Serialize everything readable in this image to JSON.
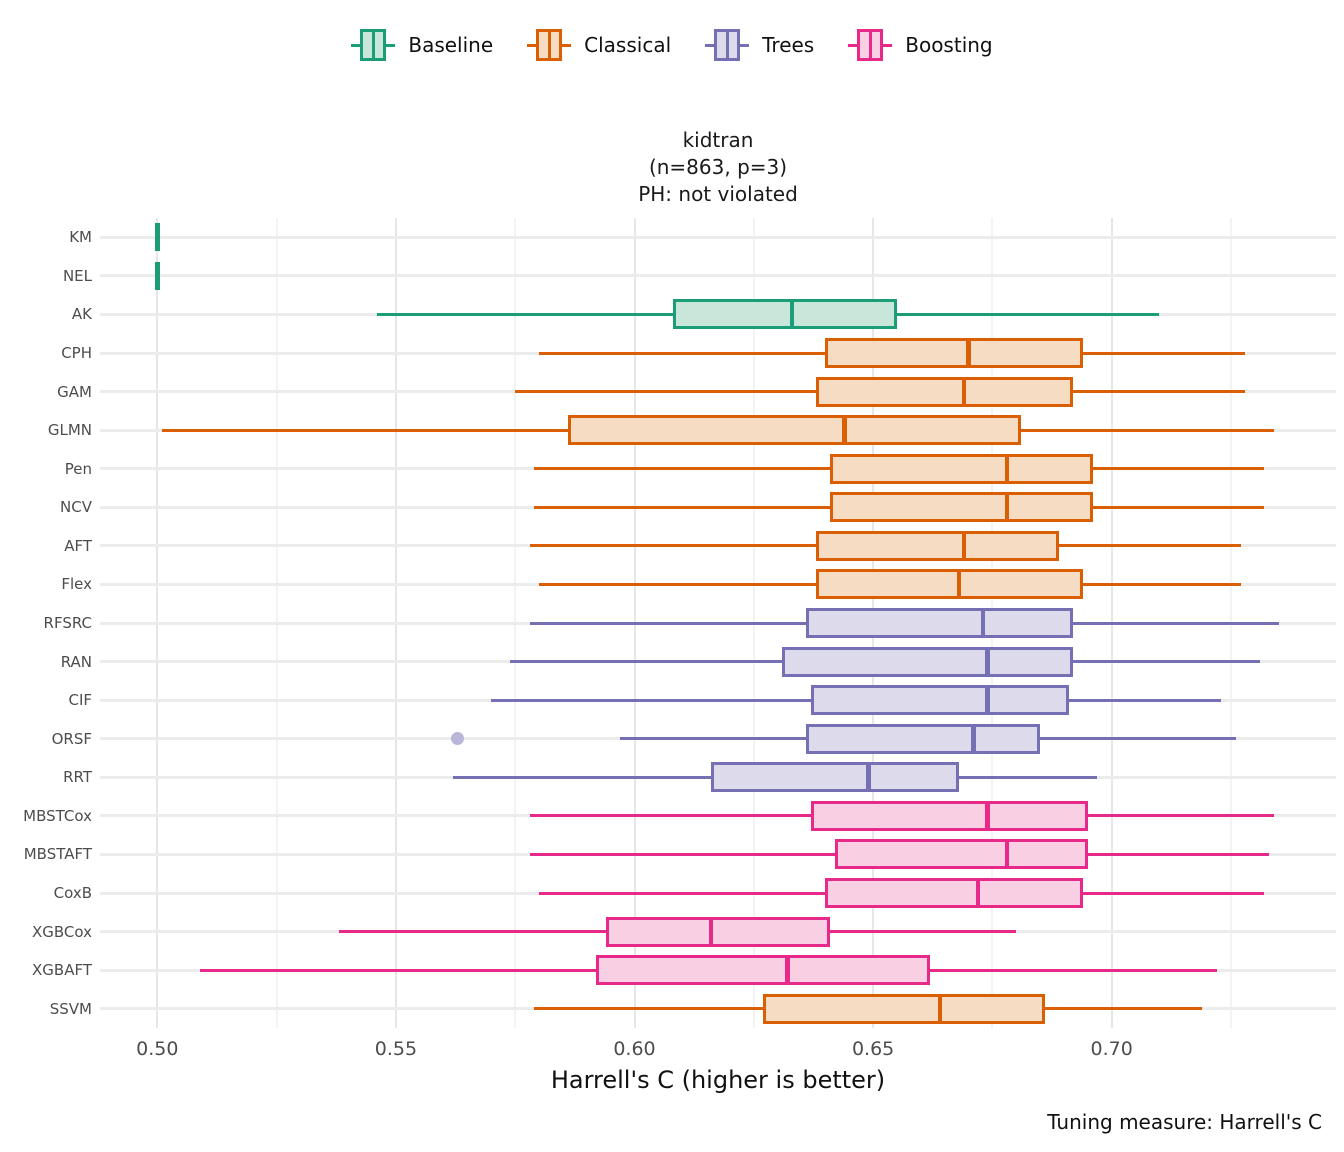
{
  "legend": {
    "items": [
      {
        "label": "Baseline",
        "stroke": "#1b9e77",
        "fill": "#c9e6db"
      },
      {
        "label": "Classical",
        "stroke": "#d95f02",
        "fill": "#f6dcc2"
      },
      {
        "label": "Trees",
        "stroke": "#7570b3",
        "fill": "#dcdaeb"
      },
      {
        "label": "Boosting",
        "stroke": "#e7298a",
        "fill": "#f9cfe3"
      }
    ]
  },
  "title_lines": {
    "dataset": "kidtran",
    "sample": "(n=863, p=3)",
    "ph": "PH: not violated"
  },
  "axis": {
    "xlabel": "Harrell's C (higher is better)",
    "x_tick_labels": [
      "0.50",
      "0.55",
      "0.60",
      "0.65",
      "0.70"
    ]
  },
  "caption": "Tuning measure: Harrell's C",
  "chart_data": {
    "type": "boxplot",
    "orientation": "horizontal",
    "title": "kidtran (n=863, p=3) PH: not violated",
    "xlabel": "Harrell's C (higher is better)",
    "x_domain": [
      0.488,
      0.747
    ],
    "x_ticks": [
      0.5,
      0.55,
      0.6,
      0.65,
      0.7
    ],
    "x_minor_ticks": [
      0.525,
      0.575,
      0.625,
      0.675,
      0.725
    ],
    "grid": true,
    "legend_position": "top",
    "groups": [
      "Baseline",
      "Classical",
      "Trees",
      "Boosting"
    ],
    "palette": {
      "Baseline": {
        "stroke": "#1b9e77",
        "fill": "#c9e6db"
      },
      "Classical": {
        "stroke": "#d95f02",
        "fill": "#f6dcc2"
      },
      "Trees": {
        "stroke": "#7570b3",
        "fill": "#dcdaeb"
      },
      "Boosting": {
        "stroke": "#e7298a",
        "fill": "#f9cfe3"
      }
    },
    "outlier_color": "#b9b6d9",
    "rows": [
      {
        "label": "KM",
        "group": "Baseline",
        "lo": 0.5,
        "q1": 0.5,
        "med": 0.5,
        "q3": 0.5,
        "hi": 0.5,
        "outliers": []
      },
      {
        "label": "NEL",
        "group": "Baseline",
        "lo": 0.5,
        "q1": 0.5,
        "med": 0.5,
        "q3": 0.5,
        "hi": 0.5,
        "outliers": []
      },
      {
        "label": "AK",
        "group": "Baseline",
        "lo": 0.546,
        "q1": 0.608,
        "med": 0.633,
        "q3": 0.655,
        "hi": 0.71,
        "outliers": []
      },
      {
        "label": "CPH",
        "group": "Classical",
        "lo": 0.58,
        "q1": 0.64,
        "med": 0.67,
        "q3": 0.694,
        "hi": 0.728,
        "outliers": []
      },
      {
        "label": "GAM",
        "group": "Classical",
        "lo": 0.575,
        "q1": 0.638,
        "med": 0.669,
        "q3": 0.692,
        "hi": 0.728,
        "outliers": []
      },
      {
        "label": "GLMN",
        "group": "Classical",
        "lo": 0.501,
        "q1": 0.586,
        "med": 0.644,
        "q3": 0.681,
        "hi": 0.734,
        "outliers": []
      },
      {
        "label": "Pen",
        "group": "Classical",
        "lo": 0.579,
        "q1": 0.641,
        "med": 0.678,
        "q3": 0.696,
        "hi": 0.732,
        "outliers": []
      },
      {
        "label": "NCV",
        "group": "Classical",
        "lo": 0.579,
        "q1": 0.641,
        "med": 0.678,
        "q3": 0.696,
        "hi": 0.732,
        "outliers": []
      },
      {
        "label": "AFT",
        "group": "Classical",
        "lo": 0.578,
        "q1": 0.638,
        "med": 0.669,
        "q3": 0.689,
        "hi": 0.727,
        "outliers": []
      },
      {
        "label": "Flex",
        "group": "Classical",
        "lo": 0.58,
        "q1": 0.638,
        "med": 0.668,
        "q3": 0.694,
        "hi": 0.727,
        "outliers": []
      },
      {
        "label": "RFSRC",
        "group": "Trees",
        "lo": 0.578,
        "q1": 0.636,
        "med": 0.673,
        "q3": 0.692,
        "hi": 0.735,
        "outliers": []
      },
      {
        "label": "RAN",
        "group": "Trees",
        "lo": 0.574,
        "q1": 0.631,
        "med": 0.674,
        "q3": 0.692,
        "hi": 0.731,
        "outliers": []
      },
      {
        "label": "CIF",
        "group": "Trees",
        "lo": 0.57,
        "q1": 0.637,
        "med": 0.674,
        "q3": 0.691,
        "hi": 0.723,
        "outliers": []
      },
      {
        "label": "ORSF",
        "group": "Trees",
        "lo": 0.597,
        "q1": 0.636,
        "med": 0.671,
        "q3": 0.685,
        "hi": 0.726,
        "outliers": [
          0.563
        ]
      },
      {
        "label": "RRT",
        "group": "Trees",
        "lo": 0.562,
        "q1": 0.616,
        "med": 0.649,
        "q3": 0.668,
        "hi": 0.697,
        "outliers": []
      },
      {
        "label": "MBSTCox",
        "group": "Boosting",
        "lo": 0.578,
        "q1": 0.637,
        "med": 0.674,
        "q3": 0.695,
        "hi": 0.734,
        "outliers": []
      },
      {
        "label": "MBSTAFT",
        "group": "Boosting",
        "lo": 0.578,
        "q1": 0.642,
        "med": 0.678,
        "q3": 0.695,
        "hi": 0.733,
        "outliers": []
      },
      {
        "label": "CoxB",
        "group": "Boosting",
        "lo": 0.58,
        "q1": 0.64,
        "med": 0.672,
        "q3": 0.694,
        "hi": 0.732,
        "outliers": []
      },
      {
        "label": "XGBCox",
        "group": "Boosting",
        "lo": 0.538,
        "q1": 0.594,
        "med": 0.616,
        "q3": 0.641,
        "hi": 0.68,
        "outliers": []
      },
      {
        "label": "XGBAFT",
        "group": "Boosting",
        "lo": 0.509,
        "q1": 0.592,
        "med": 0.632,
        "q3": 0.662,
        "hi": 0.722,
        "outliers": []
      },
      {
        "label": "SSVM",
        "group": "Classical",
        "lo": 0.579,
        "q1": 0.627,
        "med": 0.664,
        "q3": 0.686,
        "hi": 0.719,
        "outliers": []
      }
    ]
  }
}
